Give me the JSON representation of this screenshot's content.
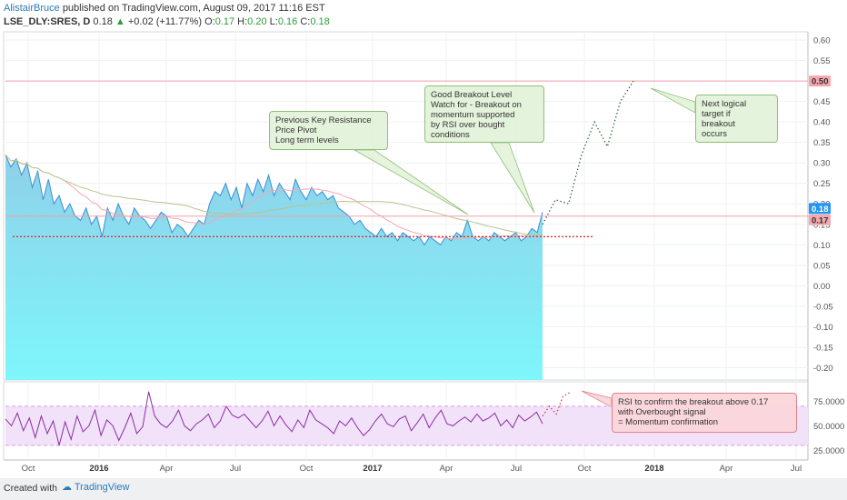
{
  "header": {
    "author": "AlistairBruce",
    "published": "published on TradingView.com, August 09, 2017 11:16 EST",
    "symbol": "LSE_DLY:SRES, D",
    "last": "0.18",
    "change": "+0.02 (+11.77%)",
    "o_label": "O:",
    "o": "0.17",
    "h_label": "H:",
    "h": "0.20",
    "l_label": "L:",
    "l": "0.16",
    "c_label": "C:",
    "c": "0.18"
  },
  "annotations": {
    "resistance_note": "Previous Key Resistance\nPrice Pivot\nLong term levels",
    "breakout_note": "Good Breakout Level\nWatch for - Breakout on\nmomentum supported\nby RSI over bought\nconditions",
    "target_note": "Next logical\ntarget if\nbreakout\noccurs",
    "rsi_note": "RSI to confirm the breakout above 0.17\nwith Overbought signal\n= Momentum confirmation"
  },
  "footer": {
    "created_with": "Created with",
    "brand": "TradingView"
  },
  "colors": {
    "area_top": "#8fd0e8",
    "area_bottom": "#7ef6fb",
    "price_line": "#3a8fd6",
    "ma_fast": "#f3a7b5",
    "ma_slow": "#b8c48e",
    "support_line": "#e03030",
    "target_line": "#f2a0a8",
    "rsi_line": "#8b2e9e",
    "rsi_band": "#f1e2fa",
    "label_blue": "#2196f3",
    "label_red": "#f4a8ae"
  },
  "chart_data": [
    {
      "type": "area",
      "symbol": "LSE_DLY:SRES",
      "interval": "D",
      "x_tick_labels": [
        "Oct",
        "2016",
        "Apr",
        "Jul",
        "Oct",
        "2017",
        "Apr",
        "Jul",
        "Oct",
        "2018",
        "Apr",
        "Jul"
      ],
      "ylim": [
        -0.23,
        0.62
      ],
      "y_ticks": [
        0.6,
        0.55,
        0.5,
        0.45,
        0.4,
        0.35,
        0.3,
        0.25,
        0.2,
        0.15,
        0.1,
        0.05,
        0.0,
        -0.05,
        -0.1,
        -0.15,
        -0.2
      ],
      "y_tick_labels": [
        "0.60",
        "0.55",
        "0.50",
        "0.45",
        "0.40",
        "0.35",
        "0.30",
        "0.25",
        "0.20",
        "0.15",
        "0.10",
        "0.05",
        "0.00",
        "-0.05",
        "-0.10",
        "-0.15",
        "-0.20"
      ],
      "series": [
        {
          "role": "price",
          "values": [
            0.32,
            0.29,
            0.31,
            0.27,
            0.3,
            0.24,
            0.28,
            0.21,
            0.26,
            0.2,
            0.22,
            0.18,
            0.2,
            0.17,
            0.16,
            0.19,
            0.15,
            0.17,
            0.12,
            0.19,
            0.16,
            0.2,
            0.17,
            0.15,
            0.19,
            0.17,
            0.16,
            0.14,
            0.16,
            0.18,
            0.17,
            0.13,
            0.15,
            0.14,
            0.12,
            0.14,
            0.16,
            0.15,
            0.2,
            0.23,
            0.22,
            0.25,
            0.21,
            0.24,
            0.19,
            0.25,
            0.22,
            0.26,
            0.23,
            0.27,
            0.22,
            0.25,
            0.23,
            0.21,
            0.26,
            0.23,
            0.21,
            0.24,
            0.22,
            0.23,
            0.21,
            0.22,
            0.19,
            0.18,
            0.17,
            0.15,
            0.16,
            0.14,
            0.13,
            0.12,
            0.14,
            0.12,
            0.13,
            0.11,
            0.13,
            0.12,
            0.11,
            0.12,
            0.1,
            0.12,
            0.11,
            0.1,
            0.12,
            0.11,
            0.13,
            0.12,
            0.16,
            0.12,
            0.11,
            0.12,
            0.11,
            0.13,
            0.12,
            0.11,
            0.12,
            0.13,
            0.11,
            0.12,
            0.14,
            0.13,
            0.18
          ]
        },
        {
          "role": "support",
          "values": [
            0.12,
            0.12
          ]
        },
        {
          "role": "target",
          "values": [
            0.5,
            0.5
          ]
        },
        {
          "role": "projection",
          "values": [
            0.15,
            0.21,
            0.2,
            0.32,
            0.4,
            0.34,
            0.45,
            0.5
          ]
        }
      ],
      "price_labels": [
        {
          "text": "0.50",
          "value": 0.5,
          "color": "#f4a8ae"
        },
        {
          "text": "0.18",
          "value": 0.18,
          "color": "#2196f3"
        },
        {
          "text": "0.17",
          "value": 0.17,
          "color": "#f4a8ae"
        }
      ]
    },
    {
      "type": "line",
      "name": "RSI",
      "ylim": [
        15,
        95
      ],
      "y_ticks": [
        75,
        50,
        25
      ],
      "y_tick_labels": [
        "75.0000",
        "50.0000",
        "25.0000"
      ],
      "band": [
        30,
        70
      ],
      "values": [
        57,
        50,
        63,
        45,
        58,
        38,
        60,
        42,
        55,
        30,
        54,
        36,
        60,
        44,
        50,
        66,
        40,
        56,
        50,
        35,
        48,
        63,
        42,
        49,
        85,
        60,
        52,
        48,
        55,
        66,
        50,
        45,
        52,
        56,
        62,
        48,
        55,
        70,
        61,
        58,
        62,
        55,
        48,
        55,
        65,
        50,
        60,
        51,
        44,
        56,
        48,
        66,
        56,
        52,
        48,
        42,
        55,
        50,
        58,
        48,
        40,
        46,
        55,
        62,
        52,
        49,
        57,
        60,
        45,
        53,
        62,
        48,
        58,
        66,
        52,
        50,
        55,
        59,
        54,
        62,
        55,
        58,
        63,
        50,
        56,
        48,
        61,
        55,
        59,
        64,
        52
      ],
      "projection": [
        60,
        70,
        62,
        80,
        84
      ]
    }
  ]
}
